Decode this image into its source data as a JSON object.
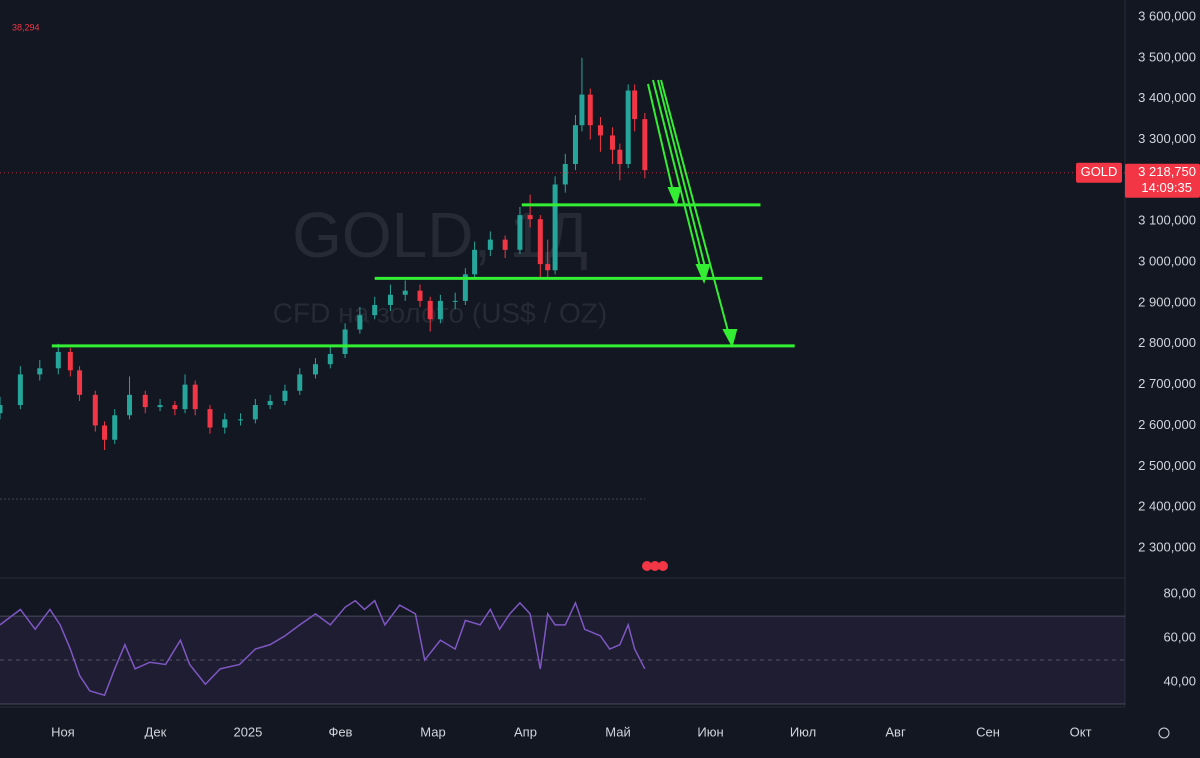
{
  "chart_data": [
    {
      "type": "candlestick",
      "title": "GOLD, 1Д",
      "subtitle": "CFD на золото (US$ / OZ)",
      "legend_value": "38,294",
      "x": [
        -0.68,
        -0.46,
        -0.25,
        -0.05,
        0.08,
        0.18,
        0.35,
        0.45,
        0.56,
        0.72,
        0.89,
        1.05,
        1.21,
        1.32,
        1.43,
        1.59,
        1.75,
        1.92,
        2.08,
        2.24,
        2.4,
        2.56,
        2.73,
        2.89,
        3.05,
        3.21,
        3.37,
        3.54,
        3.7,
        3.86,
        3.97,
        4.08,
        4.24,
        4.35,
        4.45,
        4.62,
        4.78,
        4.94,
        5.05,
        5.16,
        5.24,
        5.32,
        5.43,
        5.54,
        5.61,
        5.7,
        5.81,
        5.94,
        6.02,
        6.11,
        6.18,
        6.29
      ],
      "open": [
        2630000,
        2650000,
        2725000,
        2740000,
        2780000,
        2735000,
        2675000,
        2600000,
        2565000,
        2625000,
        2675000,
        2645000,
        2650000,
        2640000,
        2700000,
        2640000,
        2595000,
        2615000,
        2615000,
        2650000,
        2660000,
        2685000,
        2725000,
        2750000,
        2775000,
        2835000,
        2870000,
        2895000,
        2920000,
        2930000,
        2905000,
        2860000,
        2905000,
        2905000,
        2970000,
        3030000,
        3055000,
        3030000,
        3115000,
        3105000,
        2995000,
        2980000,
        3190000,
        3240000,
        3335000,
        3410000,
        3335000,
        3310000,
        3275000,
        3240000,
        3420000,
        3350000
      ],
      "high": [
        2670000,
        2745000,
        2760000,
        2800000,
        2790000,
        2745000,
        2685000,
        2610000,
        2640000,
        2720000,
        2685000,
        2665000,
        2660000,
        2725000,
        2710000,
        2650000,
        2630000,
        2630000,
        2665000,
        2675000,
        2700000,
        2740000,
        2765000,
        2795000,
        2850000,
        2890000,
        2915000,
        2945000,
        2955000,
        2945000,
        2915000,
        2920000,
        2925000,
        2985000,
        3050000,
        3075000,
        3065000,
        3135000,
        3165000,
        3115000,
        3055000,
        3210000,
        3265000,
        3360000,
        3500000,
        3425000,
        3355000,
        3330000,
        3290000,
        3435000,
        3435000,
        3365000
      ],
      "low": [
        2615000,
        2640000,
        2710000,
        2725000,
        2720000,
        2660000,
        2585000,
        2540000,
        2555000,
        2615000,
        2630000,
        2635000,
        2625000,
        2630000,
        2625000,
        2580000,
        2580000,
        2600000,
        2605000,
        2640000,
        2650000,
        2675000,
        2715000,
        2740000,
        2765000,
        2825000,
        2860000,
        2880000,
        2905000,
        2890000,
        2830000,
        2850000,
        2885000,
        2895000,
        2960000,
        3015000,
        3010000,
        3020000,
        3085000,
        2960000,
        2960000,
        2970000,
        3170000,
        3225000,
        3320000,
        3300000,
        3270000,
        3240000,
        3200000,
        3230000,
        3320000,
        3205000
      ],
      "close": [
        2650000,
        2725000,
        2740000,
        2780000,
        2735000,
        2675000,
        2600000,
        2565000,
        2625000,
        2675000,
        2645000,
        2650000,
        2640000,
        2700000,
        2640000,
        2595000,
        2615000,
        2615000,
        2650000,
        2660000,
        2685000,
        2725000,
        2750000,
        2775000,
        2835000,
        2870000,
        2895000,
        2920000,
        2930000,
        2905000,
        2860000,
        2905000,
        2905000,
        2970000,
        3030000,
        3055000,
        3030000,
        3115000,
        3105000,
        2995000,
        2980000,
        3190000,
        3240000,
        3335000,
        3410000,
        3335000,
        3310000,
        3275000,
        3240000,
        3420000,
        3350000,
        3225000
      ],
      "up_color": "#26a69a",
      "down_color": "#f23645",
      "xlim": [
        -0.68,
        11.48
      ],
      "ylim": [
        2231500,
        3641600
      ],
      "yticks": [
        {
          "value": 3600000,
          "label": "3 600,000"
        },
        {
          "value": 3500000,
          "label": "3 500,000"
        },
        {
          "value": 3400000,
          "label": "3 400,000"
        },
        {
          "value": 3300000,
          "label": "3 300,000"
        },
        {
          "value": 3200000,
          "label": "3 200,000"
        },
        {
          "value": 3100000,
          "label": "3 100,000"
        },
        {
          "value": 3000000,
          "label": "3 000,000"
        },
        {
          "value": 2900000,
          "label": "2 900,000"
        },
        {
          "value": 2800000,
          "label": "2 800,000"
        },
        {
          "value": 2700000,
          "label": "2 700,000"
        },
        {
          "value": 2600000,
          "label": "2 600,000"
        },
        {
          "value": 2500000,
          "label": "2 500,000"
        },
        {
          "value": 2400000,
          "label": "2 400,000"
        },
        {
          "value": 2300000,
          "label": "2 300,000"
        }
      ],
      "grid": false,
      "last_price": {
        "value": 3218750,
        "label": "3 218,750"
      },
      "symbol": "GOLD",
      "countdown": "14:09:35",
      "levels": [
        {
          "value": 3140000,
          "x": [
            4.96,
            7.54
          ]
        },
        {
          "value": 2960000,
          "x": [
            3.37,
            7.56
          ]
        },
        {
          "value": 2795000,
          "x": [
            -0.12,
            7.91
          ]
        }
      ],
      "level_color": "#33ee33"
    },
    {
      "type": "line",
      "xlim": [
        -0.68,
        11.48
      ],
      "ylim": [
        29.1,
        86.4
      ],
      "x": [
        -0.68,
        -0.46,
        -0.3,
        -0.14,
        -0.03,
        0.08,
        0.18,
        0.29,
        0.45,
        0.56,
        0.67,
        0.78,
        0.94,
        1.11,
        1.27,
        1.37,
        1.54,
        1.7,
        1.91,
        2.08,
        2.24,
        2.4,
        2.56,
        2.73,
        2.89,
        3.05,
        3.16,
        3.26,
        3.37,
        3.48,
        3.64,
        3.81,
        3.91,
        4.08,
        4.24,
        4.35,
        4.51,
        4.62,
        4.72,
        4.83,
        4.94,
        5.05,
        5.16,
        5.24,
        5.32,
        5.43,
        5.54,
        5.64,
        5.81,
        5.91,
        6.02,
        6.11,
        6.18,
        6.29
      ],
      "values": [
        66,
        73,
        64,
        73,
        66,
        55,
        43,
        36,
        34,
        46,
        57,
        46,
        49,
        48,
        59,
        48,
        39,
        46,
        48,
        55,
        57,
        61,
        66,
        71,
        66,
        74,
        77,
        73,
        77,
        66,
        75,
        71,
        50,
        59,
        55,
        68,
        66,
        73,
        64,
        71,
        76,
        71,
        46,
        71,
        66,
        66,
        76,
        64,
        61,
        55,
        57,
        66,
        55,
        46
      ],
      "color": "#7e57c2",
      "band": [
        30,
        70
      ],
      "midline": 50,
      "yticks": [
        {
          "value": 80,
          "label": "80,00"
        },
        {
          "value": 60,
          "label": "60,00"
        },
        {
          "value": 40,
          "label": "40,00"
        }
      ],
      "xticks": [
        {
          "value": 0,
          "label": "Ноя"
        },
        {
          "value": 1,
          "label": "Дек"
        },
        {
          "value": 2,
          "label": "2025"
        },
        {
          "value": 3,
          "label": "Фев"
        },
        {
          "value": 4,
          "label": "Мар"
        },
        {
          "value": 5,
          "label": "Апр"
        },
        {
          "value": 6,
          "label": "Май"
        },
        {
          "value": 7,
          "label": "Июн"
        },
        {
          "value": 8,
          "label": "Июл"
        },
        {
          "value": 9,
          "label": "Авг"
        },
        {
          "value": 10,
          "label": "Сен"
        },
        {
          "value": 11,
          "label": "Окт"
        }
      ]
    }
  ]
}
